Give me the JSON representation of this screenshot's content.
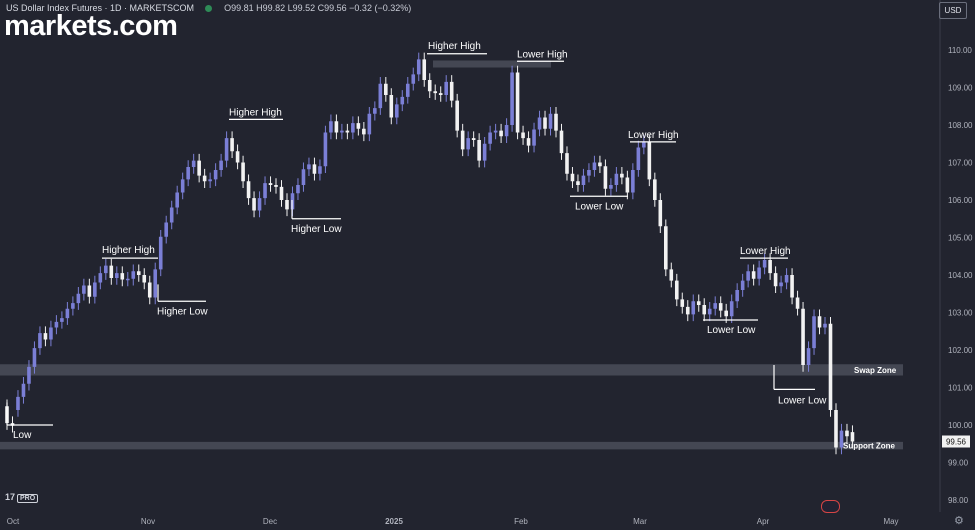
{
  "header": {
    "symbol": "US Dollar Index Futures · 1D · MARKETSCOM",
    "ohlc": "O99.81 H99.82 L99.52 C99.56 −0.32 (−0.32%)",
    "currency_button": "USD"
  },
  "brand": {
    "logo": "markets.com",
    "tv_badge": "17",
    "tv_pro": "PRO"
  },
  "icons": {
    "status": "green-dot-icon",
    "flag": "us-flag-icon",
    "settings": "gear-icon"
  },
  "colors": {
    "background": "#22242f",
    "up_candle": "#7b7fd6",
    "down_candle": "#f2f2f2",
    "zone": "#4a4d59",
    "label": "#ffffff",
    "axis_text": "#b0b3bd"
  },
  "chart_data": {
    "type": "candlestick",
    "title": "US Dollar Index Futures · 1D · MARKETSCOM",
    "ylim": [
      97.6,
      110.6
    ],
    "y_ticks": [
      98,
      99,
      100,
      101,
      102,
      103,
      104,
      105,
      106,
      107,
      108,
      109,
      110
    ],
    "x_ticks": [
      "Oct",
      "Nov",
      "Dec",
      "2025",
      "Feb",
      "Mar",
      "Apr",
      "May"
    ],
    "last_price": "99.56",
    "candles": [
      [
        100.5,
        100.05
      ],
      [
        100.05,
        99.98
      ],
      [
        100.4,
        100.75
      ],
      [
        100.75,
        101.1
      ],
      [
        101.1,
        101.55
      ],
      [
        101.55,
        102.05
      ],
      [
        102.05,
        102.45
      ],
      [
        102.45,
        102.28
      ],
      [
        102.28,
        102.6
      ],
      [
        102.6,
        102.75
      ],
      [
        102.75,
        102.85
      ],
      [
        102.85,
        103.1
      ],
      [
        103.1,
        103.25
      ],
      [
        103.25,
        103.5
      ],
      [
        103.5,
        103.72
      ],
      [
        103.72,
        103.42
      ],
      [
        103.42,
        103.8
      ],
      [
        103.8,
        104.05
      ],
      [
        104.05,
        104.25
      ],
      [
        104.25,
        103.92
      ],
      [
        103.92,
        104.05
      ],
      [
        104.05,
        103.88
      ],
      [
        103.88,
        103.9
      ],
      [
        103.9,
        104.1
      ],
      [
        104.1,
        104.0
      ],
      [
        104.0,
        103.8
      ],
      [
        103.8,
        103.4
      ],
      [
        103.4,
        104.15
      ],
      [
        104.15,
        105.02
      ],
      [
        105.02,
        105.4
      ],
      [
        105.4,
        105.8
      ],
      [
        105.8,
        106.2
      ],
      [
        106.2,
        106.55
      ],
      [
        106.55,
        106.88
      ],
      [
        106.88,
        107.05
      ],
      [
        107.05,
        106.65
      ],
      [
        106.65,
        106.5
      ],
      [
        106.5,
        106.55
      ],
      [
        106.55,
        106.8
      ],
      [
        106.8,
        107.05
      ],
      [
        107.05,
        107.65
      ],
      [
        107.65,
        107.3
      ],
      [
        107.3,
        107.0
      ],
      [
        107.0,
        106.5
      ],
      [
        106.5,
        106.05
      ],
      [
        106.05,
        105.72
      ],
      [
        105.72,
        106.05
      ],
      [
        106.05,
        106.45
      ],
      [
        106.45,
        106.4
      ],
      [
        106.4,
        106.35
      ],
      [
        106.35,
        106.0
      ],
      [
        106.0,
        105.75
      ],
      [
        105.75,
        106.18
      ],
      [
        106.18,
        106.4
      ],
      [
        106.4,
        106.82
      ],
      [
        106.82,
        106.95
      ],
      [
        106.95,
        106.7
      ],
      [
        106.7,
        106.9
      ],
      [
        106.9,
        107.8
      ],
      [
        107.8,
        108.1
      ],
      [
        108.1,
        107.8
      ],
      [
        107.8,
        107.85
      ],
      [
        107.85,
        107.8
      ],
      [
        107.8,
        108.05
      ],
      [
        108.05,
        107.9
      ],
      [
        107.9,
        107.75
      ],
      [
        107.75,
        108.3
      ],
      [
        108.3,
        108.45
      ],
      [
        108.45,
        109.1
      ],
      [
        109.1,
        108.8
      ],
      [
        108.8,
        108.2
      ],
      [
        108.2,
        108.55
      ],
      [
        108.55,
        108.75
      ],
      [
        108.75,
        109.1
      ],
      [
        109.1,
        109.35
      ],
      [
        109.35,
        109.75
      ],
      [
        109.75,
        109.2
      ],
      [
        109.2,
        108.9
      ],
      [
        108.9,
        108.85
      ],
      [
        108.85,
        108.8
      ],
      [
        108.8,
        109.15
      ],
      [
        109.15,
        108.65
      ],
      [
        108.65,
        107.85
      ],
      [
        107.85,
        107.35
      ],
      [
        107.35,
        107.65
      ],
      [
        107.65,
        107.6
      ],
      [
        107.6,
        107.05
      ],
      [
        107.05,
        107.5
      ],
      [
        107.5,
        107.8
      ],
      [
        107.8,
        107.85
      ],
      [
        107.85,
        107.7
      ],
      [
        107.7,
        108.0
      ],
      [
        108.0,
        109.4
      ],
      [
        109.4,
        107.8
      ],
      [
        107.8,
        107.65
      ],
      [
        107.65,
        107.45
      ],
      [
        107.45,
        107.88
      ],
      [
        107.88,
        108.2
      ],
      [
        108.2,
        107.9
      ],
      [
        107.9,
        108.3
      ],
      [
        108.3,
        107.85
      ],
      [
        107.85,
        107.25
      ],
      [
        107.25,
        106.7
      ],
      [
        106.7,
        106.5
      ],
      [
        106.5,
        106.4
      ],
      [
        106.4,
        106.65
      ],
      [
        106.65,
        106.8
      ],
      [
        106.8,
        107.0
      ],
      [
        107.0,
        106.9
      ],
      [
        106.9,
        106.3
      ],
      [
        106.3,
        106.4
      ],
      [
        106.4,
        106.7
      ],
      [
        106.7,
        106.6
      ],
      [
        106.6,
        106.2
      ],
      [
        106.2,
        106.8
      ],
      [
        106.8,
        107.4
      ],
      [
        107.4,
        107.55
      ],
      [
        107.55,
        106.55
      ],
      [
        106.55,
        106.0
      ],
      [
        106.0,
        105.3
      ],
      [
        105.3,
        104.15
      ],
      [
        104.15,
        103.85
      ],
      [
        103.85,
        103.35
      ],
      [
        103.35,
        103.15
      ],
      [
        103.15,
        102.95
      ],
      [
        102.95,
        103.3
      ],
      [
        103.3,
        103.2
      ],
      [
        103.2,
        102.95
      ],
      [
        102.95,
        103.1
      ],
      [
        103.1,
        103.25
      ],
      [
        103.25,
        103.05
      ],
      [
        103.05,
        102.9
      ],
      [
        102.9,
        103.3
      ],
      [
        103.3,
        103.6
      ],
      [
        103.6,
        103.85
      ],
      [
        103.85,
        104.1
      ],
      [
        104.1,
        103.9
      ],
      [
        103.9,
        104.2
      ],
      [
        104.2,
        104.4
      ],
      [
        104.4,
        104.05
      ],
      [
        104.05,
        103.7
      ],
      [
        103.7,
        103.8
      ],
      [
        103.8,
        104.0
      ],
      [
        104.0,
        103.4
      ],
      [
        103.4,
        103.1
      ],
      [
        103.1,
        101.6
      ],
      [
        101.6,
        102.05
      ],
      [
        102.05,
        102.9
      ],
      [
        102.9,
        102.6
      ],
      [
        102.6,
        102.7
      ],
      [
        102.7,
        100.4
      ],
      [
        100.4,
        99.4
      ],
      [
        99.4,
        99.85
      ],
      [
        99.85,
        99.7
      ],
      [
        99.81,
        99.56
      ]
    ],
    "zones": [
      {
        "name": "Swap Zone",
        "from": 101.32,
        "to": 101.62
      },
      {
        "name": "Support Zone",
        "from": 99.35,
        "to": 99.55
      }
    ],
    "annotations": [
      "Low",
      "Higher High",
      "Higher Low",
      "Higher High",
      "Higher Low",
      "Higher High",
      "Lower High",
      "Lower Low",
      "Lower High",
      "Lower High",
      "Lower Low",
      "Lower Low"
    ]
  }
}
